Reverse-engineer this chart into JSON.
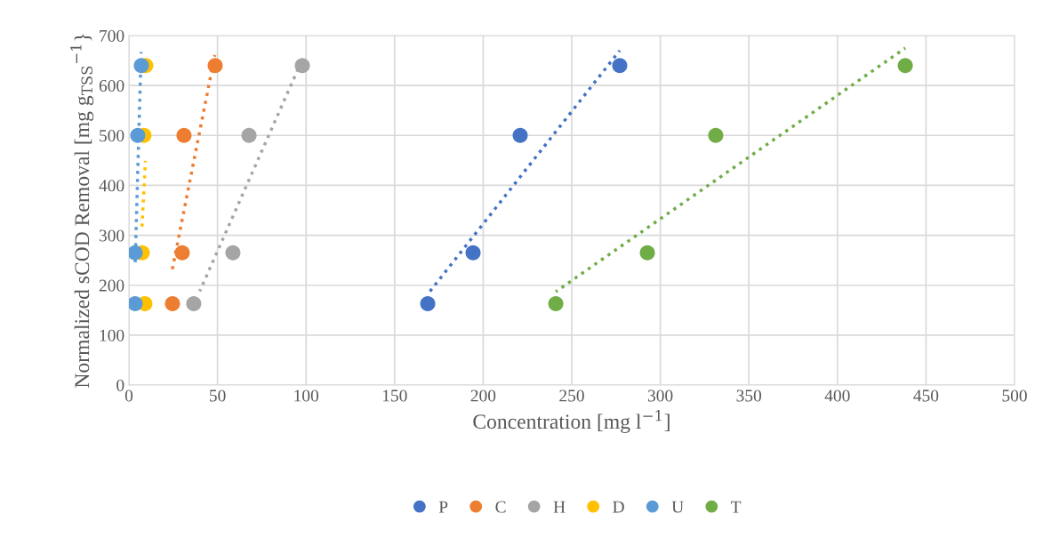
{
  "chart_data": {
    "type": "scatter",
    "xlabel": "Concentration [mg l$^{−1}$]",
    "ylabel": "Normalized sCOD Removal [mg g$_{TSS}$$^{−1}$}",
    "xlim": [
      0,
      500
    ],
    "xticks": [
      0,
      50,
      100,
      150,
      200,
      250,
      300,
      350,
      400,
      450,
      500
    ],
    "ylim": [
      0,
      700
    ],
    "yticks": [
      0,
      100,
      200,
      300,
      400,
      500,
      600,
      700
    ],
    "grid": true,
    "legend": "bottom",
    "marker": "circle",
    "series": [
      {
        "name": "P",
        "color": "#4472c4",
        "x": [
          168.7,
          194.3,
          220.9,
          277.1
        ],
        "values": [
          163,
          265,
          500,
          640
        ]
      },
      {
        "name": "C",
        "color": "#ed7d31",
        "x": [
          24.6,
          30.1,
          31.1,
          48.7
        ],
        "values": [
          163,
          265,
          500,
          640
        ]
      },
      {
        "name": "H",
        "color": "#a5a5a5",
        "x": [
          36.6,
          58.7,
          67.8,
          97.9
        ],
        "values": [
          163,
          265,
          500,
          640
        ]
      },
      {
        "name": "D",
        "color": "#ffc000",
        "x": [
          9,
          7.5,
          8.5,
          9.5
        ],
        "values": [
          163,
          265,
          500,
          640
        ]
      },
      {
        "name": "U",
        "color": "#5b9bd5",
        "x": [
          3.5,
          3.5,
          5,
          7
        ],
        "values": [
          163,
          265,
          500,
          640
        ]
      },
      {
        "name": "T",
        "color": "#70ad47",
        "x": [
          241,
          292.7,
          331.3,
          438.3
        ],
        "values": [
          163,
          265,
          500,
          640
        ]
      },
      {
        "type": "line",
        "line_style": "dotted",
        "marker": "none",
        "color": "#4472c4",
        "x": [
          168.7,
          277.1
        ],
        "values": [
          182,
          670
        ]
      },
      {
        "type": "line",
        "line_style": "dotted",
        "marker": "none",
        "color": "#ed7d31",
        "x": [
          24.3,
          48.5
        ],
        "values": [
          228,
          661
        ]
      },
      {
        "type": "line",
        "line_style": "dotted",
        "marker": "none",
        "color": "#a5a5a5",
        "x": [
          40,
          97
        ],
        "values": [
          188,
          645
        ]
      },
      {
        "type": "line",
        "line_style": "dotted",
        "marker": "none",
        "color": "#ffc000",
        "x": [
          7.4,
          9.3
        ],
        "values": [
          317,
          449
        ]
      },
      {
        "type": "line",
        "line_style": "dotted",
        "marker": "none",
        "color": "#5b9bd5",
        "x": [
          3.5,
          6.9
        ],
        "values": [
          241,
          667
        ]
      },
      {
        "type": "line",
        "line_style": "dotted",
        "marker": "none",
        "color": "#70ad47",
        "x": [
          241,
          438.3
        ],
        "values": [
          187,
          675
        ]
      }
    ]
  }
}
